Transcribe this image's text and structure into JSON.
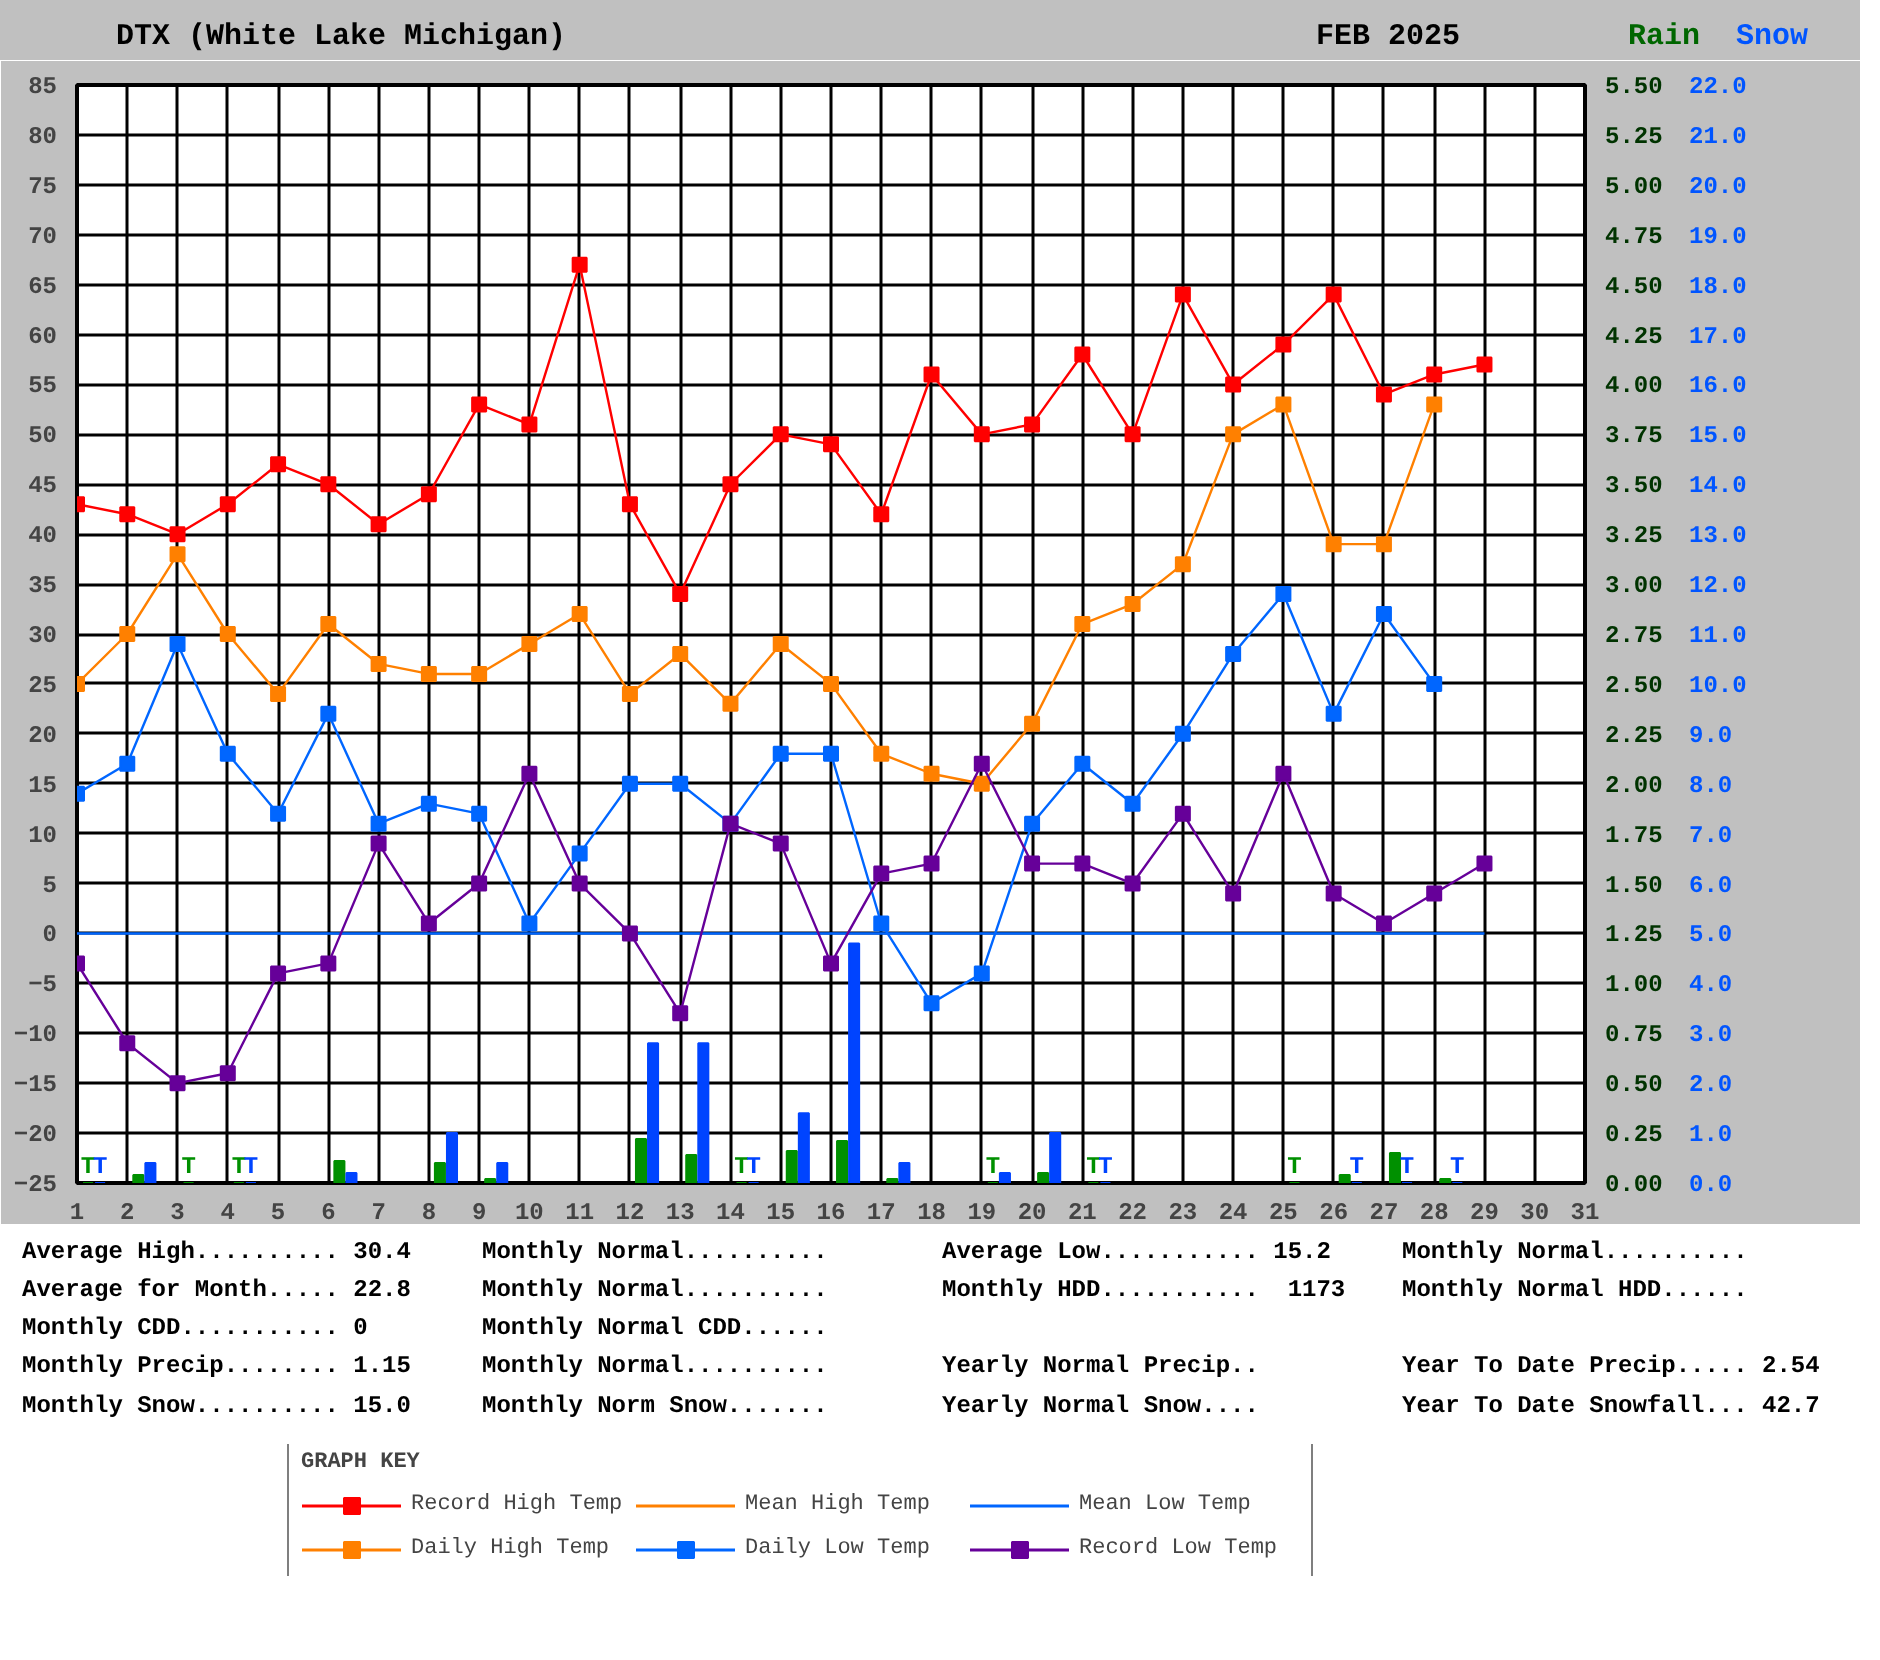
{
  "chart_data": {
    "type": "line",
    "title": "DTX (White Lake Michigan)",
    "subtitle": "FEB 2025",
    "y2label": "Rain",
    "y3label": "Snow",
    "legend_title": "GRAPH KEY",
    "x": [
      1,
      2,
      3,
      4,
      5,
      6,
      7,
      8,
      9,
      10,
      11,
      12,
      13,
      14,
      15,
      16,
      17,
      18,
      19,
      20,
      21,
      22,
      23,
      24,
      25,
      26,
      27,
      28,
      29
    ],
    "xlim": [
      1,
      31
    ],
    "xticks": [
      1,
      2,
      3,
      4,
      5,
      6,
      7,
      8,
      9,
      10,
      11,
      12,
      13,
      14,
      15,
      16,
      17,
      18,
      19,
      20,
      21,
      22,
      23,
      24,
      25,
      26,
      27,
      28,
      29,
      30,
      31
    ],
    "ylim": [
      -25,
      85
    ],
    "yticks": [
      -25,
      -20,
      -15,
      -10,
      -5,
      0,
      5,
      10,
      15,
      20,
      25,
      30,
      35,
      40,
      45,
      50,
      55,
      60,
      65,
      70,
      75,
      80,
      85
    ],
    "y2lim": [
      0,
      5.5
    ],
    "y2ticks": [
      {
        "value": 0,
        "label": "0.00"
      },
      {
        "value": 0.25,
        "label": "0.25"
      },
      {
        "value": 0.5,
        "label": "0.50"
      },
      {
        "value": 0.75,
        "label": "0.75"
      },
      {
        "value": 1,
        "label": "1.00"
      },
      {
        "value": 1.25,
        "label": "1.25"
      },
      {
        "value": 1.5,
        "label": "1.50"
      },
      {
        "value": 1.75,
        "label": "1.75"
      },
      {
        "value": 2,
        "label": "2.00"
      },
      {
        "value": 2.25,
        "label": "2.25"
      },
      {
        "value": 2.5,
        "label": "2.50"
      },
      {
        "value": 2.75,
        "label": "2.75"
      },
      {
        "value": 3,
        "label": "3.00"
      },
      {
        "value": 3.25,
        "label": "3.25"
      },
      {
        "value": 3.5,
        "label": "3.50"
      },
      {
        "value": 3.75,
        "label": "3.75"
      },
      {
        "value": 4,
        "label": "4.00"
      },
      {
        "value": 4.25,
        "label": "4.25"
      },
      {
        "value": 4.5,
        "label": "4.50"
      },
      {
        "value": 4.75,
        "label": "4.75"
      },
      {
        "value": 5,
        "label": "5.00"
      },
      {
        "value": 5.25,
        "label": "5.25"
      },
      {
        "value": 5.5,
        "label": "5.50"
      }
    ],
    "y3lim": [
      0,
      22
    ],
    "y3ticks": [
      {
        "value": 0,
        "label": "0.0"
      },
      {
        "value": 1,
        "label": "1.0"
      },
      {
        "value": 2,
        "label": "2.0"
      },
      {
        "value": 3,
        "label": "3.0"
      },
      {
        "value": 4,
        "label": "4.0"
      },
      {
        "value": 5,
        "label": "5.0"
      },
      {
        "value": 6,
        "label": "6.0"
      },
      {
        "value": 7,
        "label": "7.0"
      },
      {
        "value": 8,
        "label": "8.0"
      },
      {
        "value": 9,
        "label": "9.0"
      },
      {
        "value": 10,
        "label": "10.0"
      },
      {
        "value": 11,
        "label": "11.0"
      },
      {
        "value": 12,
        "label": "12.0"
      },
      {
        "value": 13,
        "label": "13.0"
      },
      {
        "value": 14,
        "label": "14.0"
      },
      {
        "value": 15,
        "label": "15.0"
      },
      {
        "value": 16,
        "label": "16.0"
      },
      {
        "value": 17,
        "label": "17.0"
      },
      {
        "value": 18,
        "label": "18.0"
      },
      {
        "value": 19,
        "label": "19.0"
      },
      {
        "value": 20,
        "label": "20.0"
      },
      {
        "value": 21,
        "label": "21.0"
      },
      {
        "value": 22,
        "label": "22.0"
      }
    ],
    "grid": true,
    "legend": "bottom",
    "series": [
      {
        "name": "Record High Temp",
        "color": "#ff0000",
        "marker": "square",
        "values": [
          43,
          42,
          40,
          43,
          47,
          45,
          41,
          44,
          53,
          51,
          67,
          43,
          34,
          45,
          50,
          49,
          42,
          56,
          50,
          51,
          58,
          50,
          64,
          55,
          59,
          64,
          54,
          56,
          57
        ]
      },
      {
        "name": "Mean High Temp",
        "color": "#ff8000",
        "marker": "none",
        "values": [
          null,
          null,
          null,
          null,
          null,
          null,
          null,
          null,
          null,
          null,
          null,
          null,
          null,
          null,
          null,
          null,
          null,
          null,
          null,
          null,
          null,
          null,
          null,
          null,
          null,
          null,
          null,
          null,
          null
        ]
      },
      {
        "name": "Mean Low Temp",
        "color": "#0066ff",
        "marker": "none",
        "values": [
          0,
          0,
          0,
          0,
          0,
          0,
          0,
          0,
          0,
          0,
          0,
          0,
          0,
          0,
          0,
          0,
          0,
          0,
          0,
          0,
          0,
          0,
          0,
          0,
          0,
          0,
          0,
          0,
          0
        ]
      },
      {
        "name": "Daily High Temp",
        "color": "#ff8000",
        "marker": "square",
        "values": [
          25,
          30,
          38,
          30,
          24,
          31,
          27,
          26,
          26,
          29,
          32,
          24,
          28,
          23,
          29,
          25,
          18,
          16,
          15,
          21,
          31,
          33,
          37,
          50,
          53,
          39,
          39,
          53,
          null
        ]
      },
      {
        "name": "Daily Low Temp",
        "color": "#0066ff",
        "marker": "square",
        "values": [
          14,
          17,
          29,
          18,
          12,
          22,
          11,
          13,
          12,
          1,
          8,
          15,
          15,
          11,
          18,
          18,
          1,
          -7,
          -4,
          11,
          17,
          13,
          20,
          28,
          34,
          22,
          32,
          25,
          null
        ]
      },
      {
        "name": "Record Low Temp",
        "color": "#660099",
        "marker": "square",
        "values": [
          -3,
          -11,
          -15,
          -14,
          -4,
          -3,
          9,
          1,
          5,
          16,
          5,
          0,
          -8,
          11,
          9,
          -3,
          6,
          7,
          17,
          7,
          7,
          5,
          12,
          4,
          16,
          4,
          1,
          4,
          7
        ]
      },
      {
        "type": "bar",
        "axis": "y2",
        "color": "#009000",
        "x": [
          1,
          2,
          3,
          4,
          5,
          6,
          7,
          8,
          9,
          10,
          11,
          12,
          13,
          14,
          15,
          16,
          17,
          18,
          19,
          20,
          21,
          22,
          23,
          24,
          25,
          26,
          27,
          28
        ],
        "values": [
          0,
          0.04,
          0,
          0,
          null,
          0.11,
          null,
          0.1,
          0.02,
          null,
          null,
          0.22,
          0.14,
          0,
          0.16,
          0.21,
          0.02,
          null,
          0,
          0.05,
          0,
          null,
          null,
          null,
          0,
          0.04,
          0.15,
          0.02
        ],
        "value_labels": [
          "T",
          null,
          "T",
          "T",
          null,
          null,
          null,
          null,
          null,
          null,
          null,
          null,
          null,
          "T",
          null,
          null,
          null,
          null,
          "T",
          null,
          "T",
          null,
          null,
          null,
          "T",
          null,
          null,
          null
        ]
      },
      {
        "type": "bar",
        "axis": "y3",
        "color": "#0044ff",
        "x": [
          1,
          2,
          3,
          4,
          5,
          6,
          7,
          8,
          9,
          10,
          11,
          12,
          13,
          14,
          15,
          16,
          17,
          18,
          19,
          20,
          21,
          22,
          23,
          24,
          25,
          26,
          27,
          28
        ],
        "values": [
          0,
          0.4,
          null,
          0,
          null,
          0.2,
          null,
          1.0,
          0.4,
          null,
          null,
          2.8,
          2.8,
          0,
          1.4,
          4.8,
          0.4,
          null,
          0.2,
          1.0,
          0,
          null,
          null,
          null,
          null,
          0,
          0,
          0
        ],
        "value_labels": [
          "T",
          null,
          null,
          "T",
          null,
          null,
          null,
          null,
          null,
          null,
          null,
          null,
          null,
          "T",
          null,
          null,
          null,
          null,
          null,
          null,
          "T",
          null,
          null,
          null,
          null,
          "T",
          "T",
          "T"
        ]
      }
    ],
    "annotations": [
      "Average High.......... 30.4",
      "Monthly Normal..........",
      "Average Low........... 15.2",
      "Monthly Normal..........",
      "Average for Month..... 22.8",
      "Monthly Normal..........",
      "Monthly HDD...........  1173",
      "Monthly Normal HDD......",
      "Monthly CDD........... 0",
      "Monthly Normal CDD......",
      "Monthly Precip........ 1.15",
      "Monthly Normal..........",
      "Yearly Normal Precip..",
      "Year To Date Precip..... 2.54",
      "Monthly Snow.......... 15.0",
      "Monthly Norm Snow.......",
      "Yearly Normal Snow....",
      "Year To Date Snowfall... 42.7"
    ]
  }
}
